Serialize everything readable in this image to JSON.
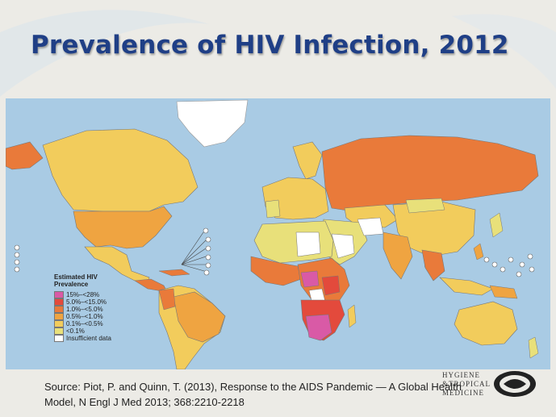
{
  "slide": {
    "title": "Prevalence of HIV Infection, 2012",
    "source_line1": "Source: Piot, P. and Quinn, T. (2013), Response to the AIDS Pandemic — A Global Health",
    "source_line2": "Model, N Engl J Med 2013; 368:2210-2218"
  },
  "legend": {
    "title_line1": "Estimated HIV",
    "title_line2": "Prevalence",
    "items": [
      {
        "label": "15%–<28%",
        "color": "#d95aa6"
      },
      {
        "label": "5.0%–<15.0%",
        "color": "#e34a3c"
      },
      {
        "label": "1.0%–<5.0%",
        "color": "#e97a3a"
      },
      {
        "label": "0.5%–<1.0%",
        "color": "#efa441"
      },
      {
        "label": "0.1%–<0.5%",
        "color": "#f2cc5c"
      },
      {
        "label": "<0.1%",
        "color": "#e8e07a"
      },
      {
        "label": "Insufficient data",
        "color": "#ffffff"
      }
    ]
  },
  "logo": {
    "line1": "HYGIENE",
    "line2": "&TROPICAL",
    "line3": "MEDICINE"
  },
  "colors": {
    "title": "#1f3f86",
    "ocean": "#a9cbe4"
  }
}
